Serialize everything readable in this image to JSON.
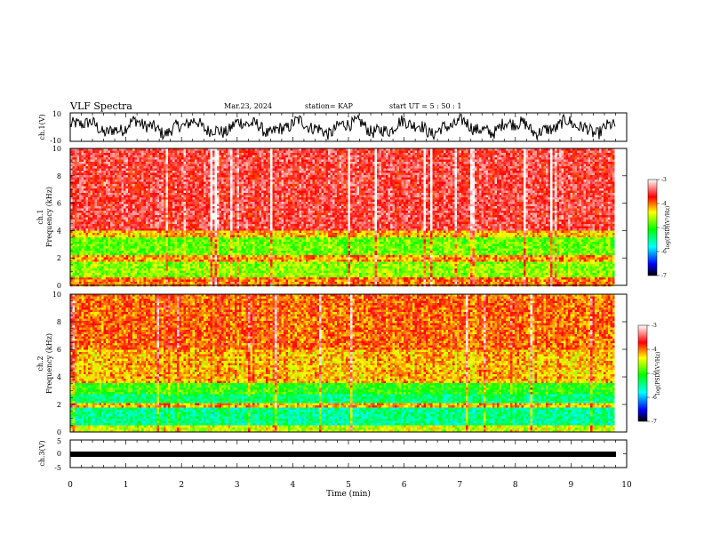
{
  "header": {
    "title": "VLF Spectra",
    "date": "Mar.23, 2024",
    "station": "station= KAP",
    "start": "start  UT  =   5  : 50 : 1"
  },
  "chart_data": [
    {
      "type": "line",
      "name": "ch1-waveform",
      "ylabel": "ch.1(V)",
      "ylim": [
        -10,
        10
      ],
      "yticklabels": [
        "10",
        "-10"
      ],
      "xlim": [
        0,
        10
      ],
      "description_values": "noisy oscillation roughly between -8 and 8 V over 0–9.8 min"
    },
    {
      "type": "heatmap",
      "name": "ch1-spectrogram",
      "ylabel": "ch.1\nFrequency (kHz)",
      "ylabel_lines": [
        "ch.1",
        "Frequency (kHz)"
      ],
      "ylim": [
        0,
        10
      ],
      "yticks": [
        0,
        2,
        4,
        6,
        8,
        10
      ],
      "xlim": [
        0,
        10
      ],
      "data_end_min": 9.8,
      "colorbar": {
        "label": "log(PSD)(V²/Hz)",
        "range": [
          -7,
          -3
        ],
        "ticks": [
          -3,
          -4,
          -5,
          -6,
          -7
        ],
        "ticklabels": [
          "-3",
          "-4",
          "-5",
          "-6",
          "-7"
        ]
      }
    },
    {
      "type": "heatmap",
      "name": "ch2-spectrogram",
      "ylabel_lines": [
        "ch.2",
        "Frequency (kHz)"
      ],
      "ylim": [
        0,
        10
      ],
      "yticks": [
        0,
        2,
        4,
        6,
        8,
        10
      ],
      "xlim": [
        0,
        10
      ],
      "data_end_min": 9.8,
      "colorbar": {
        "label": "log(PSD)(V²/Hz)",
        "range": [
          -7,
          -3
        ],
        "ticks": [
          -3,
          -4,
          -5,
          -6,
          -7
        ],
        "ticklabels": [
          "-3",
          "-4",
          "-5",
          "-6",
          "-7"
        ]
      }
    },
    {
      "type": "line",
      "name": "ch3-waveform",
      "ylabel": "ch.3(V)",
      "ylim": [
        -5,
        5
      ],
      "yticklabels": [
        "5",
        "0",
        "-5"
      ],
      "xlim": [
        0,
        10
      ],
      "xlabel": "Time  (min)",
      "xticks": [
        0,
        1,
        2,
        3,
        4,
        5,
        6,
        7,
        8,
        9,
        10
      ],
      "xticklabels": [
        "0",
        "1",
        "2",
        "3",
        "4",
        "5",
        "6",
        "7",
        "8",
        "9",
        "10"
      ]
    }
  ],
  "colors": {
    "high": "#ff0000",
    "mid_high": "#ffff00",
    "mid": "#00ff00",
    "mid_low": "#00ffff",
    "low": "#0000ff",
    "min": "#000000"
  }
}
